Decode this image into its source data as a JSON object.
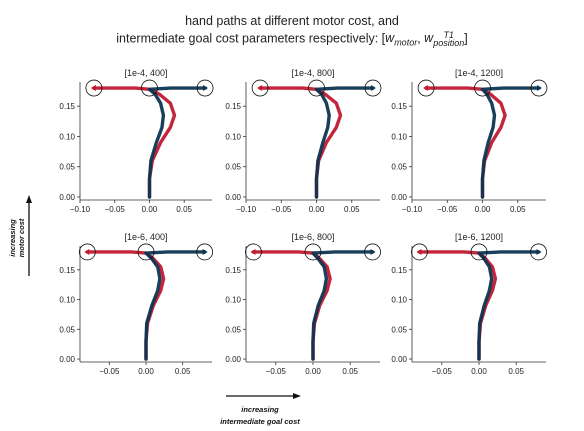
{
  "figure": {
    "title_line1": "hand paths at different motor cost, and",
    "title_line2_prefix": "intermediate goal cost parameters respectively: [",
    "title_w_motor": "w",
    "title_w_motor_sub": "motor",
    "title_comma": ", ",
    "title_w_pos": "w",
    "title_w_pos_sup": "T1",
    "title_w_pos_sub": "position",
    "title_suffix": "]",
    "y_arrow_label_line1": "increasing",
    "y_arrow_label_line2": "motor cost",
    "x_arrow_label_line1": "increasing",
    "x_arrow_label_line2": "intermediate goal cost"
  },
  "colors": {
    "red": "#c0192f",
    "navy": "#0d3552",
    "axis": "#333333",
    "circle": "#111111"
  },
  "chart_data": [
    {
      "type": "line",
      "title": "[1e-4, 400]",
      "xlim": [
        -0.1,
        0.09
      ],
      "ylim": [
        -0.005,
        0.19
      ],
      "xticks": [
        -0.1,
        -0.05,
        0.0,
        0.05
      ],
      "xtick_labels": [
        "−0.10",
        "−0.05",
        "0.00",
        "0.05"
      ],
      "yticks": [
        0.0,
        0.05,
        0.1,
        0.15
      ],
      "ytick_labels": [
        "0.00",
        "0.05",
        "0.10",
        "0.15"
      ],
      "targets_x": [
        -0.08,
        0.0,
        0.08
      ],
      "target_y": 0.18,
      "series": [
        {
          "color": "red",
          "x": [
            0.0,
            0.0,
            0.004,
            0.016,
            0.03,
            0.036,
            0.03,
            0.014,
            0.0,
            -0.02,
            -0.05,
            -0.08
          ],
          "y": [
            0.0,
            0.03,
            0.06,
            0.09,
            0.115,
            0.135,
            0.155,
            0.17,
            0.178,
            0.18,
            0.18,
            0.18
          ]
        },
        {
          "color": "navy",
          "x": [
            0.0,
            0.0,
            0.002,
            0.01,
            0.018,
            0.02,
            0.016,
            0.008,
            0.0,
            0.03,
            0.06,
            0.08
          ],
          "y": [
            0.0,
            0.03,
            0.06,
            0.09,
            0.115,
            0.135,
            0.155,
            0.17,
            0.178,
            0.18,
            0.18,
            0.18
          ]
        }
      ]
    },
    {
      "type": "line",
      "title": "[1e-4, 800]",
      "xlim": [
        -0.1,
        0.09
      ],
      "ylim": [
        -0.005,
        0.19
      ],
      "xticks": [
        -0.1,
        -0.05,
        0.0,
        0.05
      ],
      "xtick_labels": [
        "−0.10",
        "−0.05",
        "0.00",
        "0.05"
      ],
      "yticks": [
        0.0,
        0.05,
        0.1,
        0.15
      ],
      "ytick_labels": [
        "0.00",
        "0.05",
        "0.10",
        "0.15"
      ],
      "targets_x": [
        -0.08,
        0.0,
        0.08
      ],
      "target_y": 0.18,
      "series": [
        {
          "color": "red",
          "x": [
            0.0,
            0.0,
            0.003,
            0.014,
            0.028,
            0.034,
            0.028,
            0.012,
            0.0,
            -0.02,
            -0.05,
            -0.08
          ],
          "y": [
            0.0,
            0.03,
            0.06,
            0.09,
            0.115,
            0.135,
            0.155,
            0.17,
            0.178,
            0.18,
            0.18,
            0.18
          ]
        },
        {
          "color": "navy",
          "x": [
            0.0,
            0.0,
            0.002,
            0.009,
            0.016,
            0.018,
            0.014,
            0.007,
            0.0,
            0.03,
            0.06,
            0.08
          ],
          "y": [
            0.0,
            0.03,
            0.06,
            0.09,
            0.115,
            0.135,
            0.155,
            0.17,
            0.178,
            0.18,
            0.18,
            0.18
          ]
        }
      ]
    },
    {
      "type": "line",
      "title": "[1e-4, 1200]",
      "xlim": [
        -0.1,
        0.09
      ],
      "ylim": [
        -0.005,
        0.19
      ],
      "xticks": [
        -0.1,
        -0.05,
        0.0,
        0.05
      ],
      "xtick_labels": [
        "−0.10",
        "−0.05",
        "0.00",
        "0.05"
      ],
      "yticks": [
        0.0,
        0.05,
        0.1,
        0.15
      ],
      "ytick_labels": [
        "0.00",
        "0.05",
        "0.10",
        "0.15"
      ],
      "targets_x": [
        -0.08,
        0.0,
        0.08
      ],
      "target_y": 0.18,
      "series": [
        {
          "color": "red",
          "x": [
            0.0,
            0.0,
            0.003,
            0.013,
            0.026,
            0.032,
            0.026,
            0.011,
            0.0,
            -0.02,
            -0.05,
            -0.08
          ],
          "y": [
            0.0,
            0.03,
            0.06,
            0.09,
            0.115,
            0.135,
            0.155,
            0.17,
            0.178,
            0.18,
            0.18,
            0.18
          ]
        },
        {
          "color": "navy",
          "x": [
            0.0,
            0.0,
            0.002,
            0.008,
            0.015,
            0.017,
            0.013,
            0.006,
            0.0,
            0.03,
            0.06,
            0.08
          ],
          "y": [
            0.0,
            0.03,
            0.06,
            0.09,
            0.115,
            0.135,
            0.155,
            0.17,
            0.178,
            0.18,
            0.18,
            0.18
          ]
        }
      ]
    },
    {
      "type": "line",
      "title": "[1e-6, 400]",
      "xlim": [
        -0.09,
        0.09
      ],
      "ylim": [
        -0.005,
        0.19
      ],
      "xticks": [
        -0.05,
        0.0,
        0.05
      ],
      "xtick_labels": [
        "−0.05",
        "0.00",
        "0.05"
      ],
      "yticks": [
        0.0,
        0.05,
        0.1,
        0.15
      ],
      "ytick_labels": [
        "0.00",
        "0.05",
        "0.10",
        "0.15"
      ],
      "targets_x": [
        -0.08,
        0.0,
        0.08
      ],
      "target_y": 0.18,
      "series": [
        {
          "color": "red",
          "x": [
            0.0,
            0.0,
            0.002,
            0.01,
            0.02,
            0.024,
            0.02,
            0.009,
            0.0,
            -0.02,
            -0.05,
            -0.08
          ],
          "y": [
            0.0,
            0.03,
            0.06,
            0.09,
            0.115,
            0.135,
            0.155,
            0.17,
            0.178,
            0.18,
            0.18,
            0.18
          ]
        },
        {
          "color": "navy",
          "x": [
            0.0,
            0.0,
            0.001,
            0.008,
            0.016,
            0.019,
            0.016,
            0.007,
            0.0,
            0.03,
            0.06,
            0.08
          ],
          "y": [
            0.0,
            0.03,
            0.06,
            0.09,
            0.115,
            0.135,
            0.155,
            0.17,
            0.178,
            0.18,
            0.18,
            0.18
          ]
        }
      ]
    },
    {
      "type": "line",
      "title": "[1e-6, 800]",
      "xlim": [
        -0.09,
        0.09
      ],
      "ylim": [
        -0.005,
        0.19
      ],
      "xticks": [
        -0.05,
        0.0,
        0.05
      ],
      "xtick_labels": [
        "−0.05",
        "0.00",
        "0.05"
      ],
      "yticks": [
        0.0,
        0.05,
        0.1,
        0.15
      ],
      "ytick_labels": [
        "0.00",
        "0.05",
        "0.10",
        "0.15"
      ],
      "targets_x": [
        -0.08,
        0.0,
        0.08
      ],
      "target_y": 0.18,
      "series": [
        {
          "color": "red",
          "x": [
            0.0,
            0.0,
            0.002,
            0.009,
            0.019,
            0.023,
            0.019,
            0.008,
            0.0,
            -0.02,
            -0.05,
            -0.08
          ],
          "y": [
            0.0,
            0.03,
            0.06,
            0.09,
            0.115,
            0.135,
            0.155,
            0.17,
            0.178,
            0.18,
            0.18,
            0.18
          ]
        },
        {
          "color": "navy",
          "x": [
            0.0,
            0.0,
            0.001,
            0.007,
            0.015,
            0.018,
            0.015,
            0.006,
            0.0,
            0.03,
            0.06,
            0.08
          ],
          "y": [
            0.0,
            0.03,
            0.06,
            0.09,
            0.115,
            0.135,
            0.155,
            0.17,
            0.178,
            0.18,
            0.18,
            0.18
          ]
        }
      ]
    },
    {
      "type": "line",
      "title": "[1e-6, 1200]",
      "xlim": [
        -0.09,
        0.09
      ],
      "ylim": [
        -0.005,
        0.19
      ],
      "xticks": [
        -0.05,
        0.0,
        0.05
      ],
      "xtick_labels": [
        "−0.05",
        "0.00",
        "0.05"
      ],
      "yticks": [
        0.0,
        0.05,
        0.1,
        0.15
      ],
      "ytick_labels": [
        "0.00",
        "0.05",
        "0.10",
        "0.15"
      ],
      "targets_x": [
        -0.08,
        0.0,
        0.08
      ],
      "target_y": 0.18,
      "series": [
        {
          "color": "red",
          "x": [
            0.0,
            0.0,
            0.002,
            0.009,
            0.018,
            0.022,
            0.018,
            0.008,
            0.0,
            -0.02,
            -0.05,
            -0.08
          ],
          "y": [
            0.0,
            0.03,
            0.06,
            0.09,
            0.115,
            0.135,
            0.155,
            0.17,
            0.178,
            0.18,
            0.18,
            0.18
          ]
        },
        {
          "color": "navy",
          "x": [
            0.0,
            0.0,
            0.001,
            0.007,
            0.014,
            0.017,
            0.014,
            0.006,
            0.0,
            0.03,
            0.06,
            0.08
          ],
          "y": [
            0.0,
            0.03,
            0.06,
            0.09,
            0.115,
            0.135,
            0.155,
            0.17,
            0.178,
            0.18,
            0.18,
            0.18
          ]
        }
      ]
    }
  ]
}
